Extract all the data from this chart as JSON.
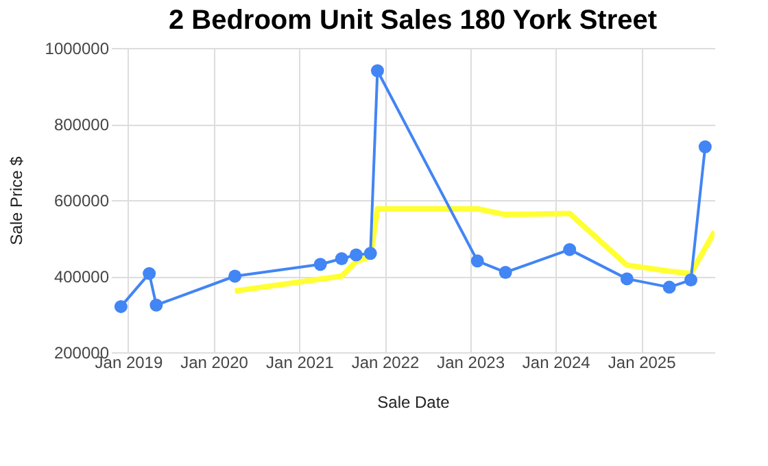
{
  "chart_data": {
    "type": "line",
    "title": "2 Bedroom Unit Sales 180 York Street",
    "xlabel": "Sale Date",
    "ylabel": "Sale Price $",
    "xlim": [
      "2018-10-20",
      "2025-11-10"
    ],
    "xticks": [
      {
        "value": "2019-01-01",
        "label": "Jan 2019"
      },
      {
        "value": "2020-01-01",
        "label": "Jan 2020"
      },
      {
        "value": "2021-01-01",
        "label": "Jan 2021"
      },
      {
        "value": "2022-01-01",
        "label": "Jan 2022"
      },
      {
        "value": "2023-01-01",
        "label": "Jan 2023"
      },
      {
        "value": "2024-01-01",
        "label": "Jan 2024"
      },
      {
        "value": "2025-01-01",
        "label": "Jan 2025"
      }
    ],
    "ylim": [
      200000,
      1000000
    ],
    "yticks": [
      200000,
      400000,
      600000,
      800000,
      1000000
    ],
    "grid": true,
    "series": [
      {
        "color": "#4285f4",
        "marker": "circle",
        "x": [
          "2018-12",
          "2019-04",
          "2019-05",
          "2020-04",
          "2021-04",
          "2021-07",
          "2021-09",
          "2021-11",
          "2021-12",
          "2023-02",
          "2023-06",
          "2024-03",
          "2024-11",
          "2025-05",
          "2025-08",
          "2025-10"
        ],
        "values": [
          320000,
          407000,
          324000,
          400000,
          431000,
          446000,
          456000,
          460000,
          940000,
          440000,
          410000,
          470000,
          393000,
          371000,
          390000,
          740000
        ]
      },
      {
        "color": "#ffff33",
        "marker": "none",
        "x": [
          "2020-04",
          "2021-07",
          "2021-09",
          "2021-11",
          "2021-12",
          "2023-02",
          "2023-06",
          "2024-03",
          "2024-11",
          "2025-05",
          "2025-08",
          "2025-11-10"
        ],
        "values": [
          361000,
          400000,
          439000,
          451000,
          577000,
          577000,
          562000,
          565000,
          429000,
          413000,
          407000,
          517000
        ]
      }
    ]
  }
}
